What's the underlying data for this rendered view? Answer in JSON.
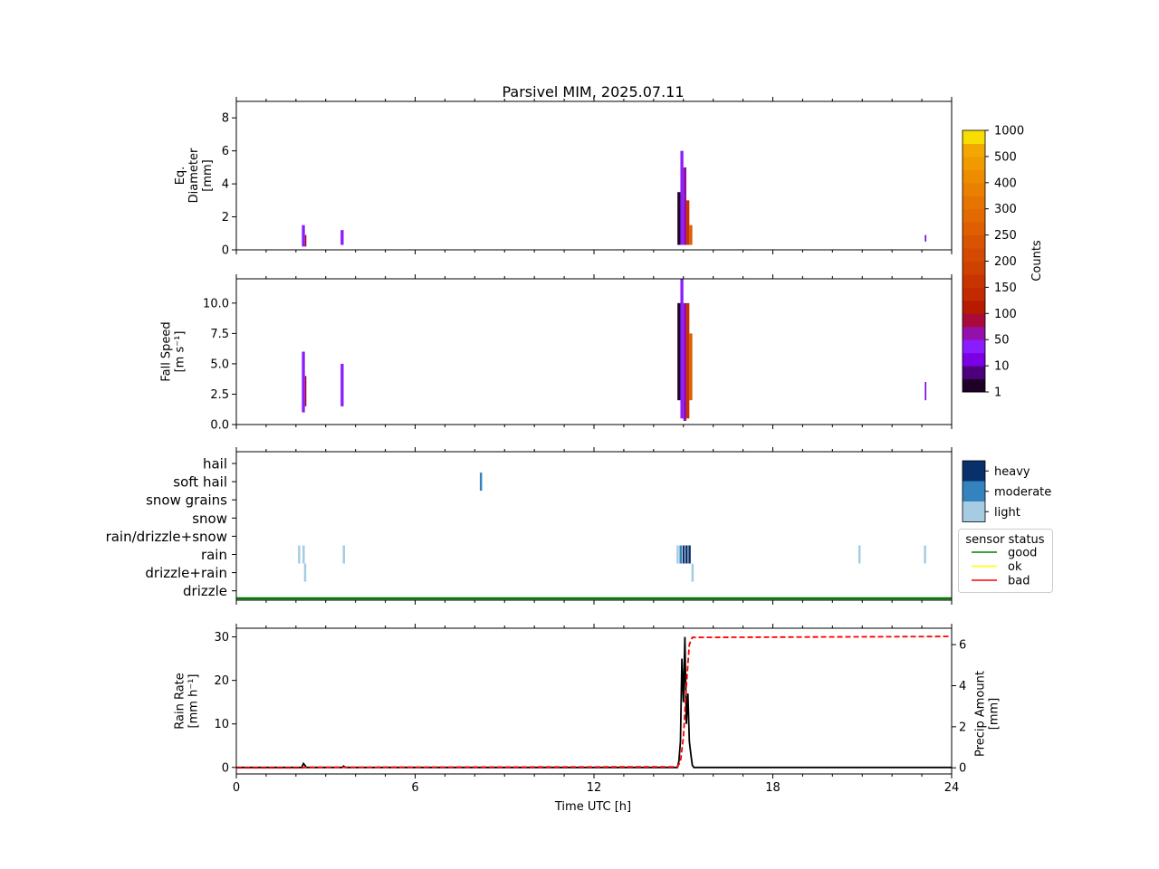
{
  "chart_data": {
    "title": "Parsivel MIM, 2025.07.11",
    "xlabel": "Time UTC [h]",
    "x_ticks": [
      "0",
      "6",
      "12",
      "18",
      "24"
    ],
    "xlim": [
      0,
      24
    ],
    "panels": [
      {
        "type": "heatmap",
        "ylabel": [
          "Eq.",
          "Diameter",
          "[mm]"
        ],
        "ylim": [
          0,
          9
        ],
        "y_ticks": [
          "0",
          "2",
          "4",
          "6",
          "8"
        ],
        "y_tick_values": [
          0,
          2,
          4,
          6,
          8
        ],
        "cells": [
          {
            "t0": 2.2,
            "t1": 2.3,
            "y0": 0.2,
            "y1": 1.5,
            "level": 30
          },
          {
            "t0": 2.3,
            "t1": 2.35,
            "y0": 0.2,
            "y1": 0.9,
            "level": 80
          },
          {
            "t0": 3.5,
            "t1": 3.6,
            "y0": 0.3,
            "y1": 1.2,
            "level": 20
          },
          {
            "t0": 14.8,
            "t1": 14.9,
            "y0": 0.3,
            "y1": 3.5,
            "level": 2
          },
          {
            "t0": 14.9,
            "t1": 15.0,
            "y0": 0.3,
            "y1": 6.0,
            "level": 30
          },
          {
            "t0": 15.0,
            "t1": 15.1,
            "y0": 0.3,
            "y1": 5.0,
            "level": 60
          },
          {
            "t0": 15.1,
            "t1": 15.2,
            "y0": 0.3,
            "y1": 3.0,
            "level": 150
          },
          {
            "t0": 15.2,
            "t1": 15.3,
            "y0": 0.3,
            "y1": 1.5,
            "level": 250
          },
          {
            "t0": 23.1,
            "t1": 23.15,
            "y0": 0.5,
            "y1": 0.9,
            "level": 15
          }
        ]
      },
      {
        "type": "heatmap",
        "ylabel": [
          "Fall Speed",
          "[m s⁻¹]"
        ],
        "ylim": [
          0,
          12
        ],
        "y_ticks": [
          "0.0",
          "2.5",
          "5.0",
          "7.5",
          "10.0"
        ],
        "y_tick_values": [
          0,
          2.5,
          5,
          7.5,
          10
        ],
        "cells": [
          {
            "t0": 2.2,
            "t1": 2.3,
            "y0": 1.0,
            "y1": 6.0,
            "level": 30
          },
          {
            "t0": 2.3,
            "t1": 2.35,
            "y0": 1.5,
            "y1": 4.0,
            "level": 80
          },
          {
            "t0": 3.5,
            "t1": 3.6,
            "y0": 1.5,
            "y1": 5.0,
            "level": 20
          },
          {
            "t0": 14.8,
            "t1": 14.9,
            "y0": 2.0,
            "y1": 10.0,
            "level": 2
          },
          {
            "t0": 14.9,
            "t1": 15.0,
            "y0": 0.5,
            "y1": 12.0,
            "level": 30
          },
          {
            "t0": 15.0,
            "t1": 15.1,
            "y0": 0.3,
            "y1": 10.0,
            "level": 60
          },
          {
            "t0": 15.1,
            "t1": 15.2,
            "y0": 0.5,
            "y1": 10.0,
            "level": 150
          },
          {
            "t0": 15.2,
            "t1": 15.3,
            "y0": 2.0,
            "y1": 7.5,
            "level": 250
          },
          {
            "t0": 23.1,
            "t1": 23.15,
            "y0": 2.0,
            "y1": 3.5,
            "level": 15
          }
        ]
      },
      {
        "type": "categorical-timeline",
        "categories": [
          "hail",
          "soft hail",
          "snow grains",
          "snow",
          "rain/drizzle+snow",
          "rain",
          "drizzle+rain",
          "drizzle"
        ],
        "events": [
          {
            "t": 2.1,
            "category": "rain",
            "intensity": "light"
          },
          {
            "t": 2.25,
            "category": "rain",
            "intensity": "light"
          },
          {
            "t": 2.3,
            "category": "drizzle+rain",
            "intensity": "light"
          },
          {
            "t": 3.6,
            "category": "rain",
            "intensity": "light"
          },
          {
            "t": 8.2,
            "category": "soft hail",
            "intensity": "moderate"
          },
          {
            "t": 14.8,
            "category": "rain",
            "intensity": "light"
          },
          {
            "t": 14.9,
            "category": "rain",
            "intensity": "moderate"
          },
          {
            "t": 15.0,
            "category": "rain",
            "intensity": "heavy"
          },
          {
            "t": 15.1,
            "category": "rain",
            "intensity": "heavy"
          },
          {
            "t": 15.2,
            "category": "rain",
            "intensity": "heavy"
          },
          {
            "t": 15.3,
            "category": "drizzle+rain",
            "intensity": "light"
          },
          {
            "t": 20.9,
            "category": "rain",
            "intensity": "light"
          },
          {
            "t": 23.1,
            "category": "rain",
            "intensity": "light"
          }
        ],
        "intensity_legend": [
          "heavy",
          "moderate",
          "light"
        ],
        "sensor_status": {
          "title": "sensor status",
          "entries": [
            "good",
            "ok",
            "bad"
          ],
          "current": "good"
        }
      },
      {
        "type": "line",
        "ylabel": [
          "Rain Rate",
          "[mm h⁻¹]"
        ],
        "ylim": [
          -1.5,
          32
        ],
        "y_ticks": [
          "0",
          "10",
          "20",
          "30"
        ],
        "y_tick_values": [
          0,
          10,
          20,
          30
        ],
        "ylabel2": [
          "Precip Amount",
          "[mm]"
        ],
        "ylim2": [
          -0.3,
          6.8
        ],
        "y2_ticks": [
          "0",
          "2",
          "4",
          "6"
        ],
        "y2_tick_values": [
          0,
          2,
          4,
          6
        ],
        "series": [
          {
            "name": "rain rate",
            "axis": "left",
            "x": [
              0,
              2.2,
              2.25,
              2.3,
              2.35,
              3.55,
              3.6,
              3.65,
              14.8,
              14.85,
              14.9,
              14.95,
              15.0,
              15.05,
              15.1,
              15.15,
              15.2,
              15.25,
              15.3,
              15.35,
              24
            ],
            "y": [
              0,
              0,
              0.9,
              0.5,
              0,
              0,
              0.3,
              0,
              0,
              1.5,
              6,
              25,
              15,
              30,
              10,
              17,
              6,
              3,
              0.5,
              0,
              0
            ]
          },
          {
            "name": "precip amount",
            "axis": "right",
            "x": [
              0,
              2.2,
              2.4,
              14.8,
              14.9,
              15.0,
              15.1,
              15.2,
              15.3,
              24
            ],
            "y": [
              0,
              0,
              0.02,
              0.05,
              0.3,
              1.5,
              4.0,
              6.0,
              6.35,
              6.4
            ]
          }
        ]
      }
    ],
    "colorbar": {
      "label": "Counts",
      "tick_labels": [
        "1",
        "10",
        "50",
        "100",
        "150",
        "200",
        "250",
        "300",
        "400",
        "500",
        "1000"
      ],
      "bounds": [
        1,
        5,
        10,
        20,
        50,
        75,
        100,
        125,
        150,
        175,
        200,
        225,
        250,
        275,
        300,
        350,
        400,
        450,
        500,
        750,
        1000
      ],
      "colors": [
        "#1f0026",
        "#4c0079",
        "#7b00e6",
        "#8a1cff",
        "#9410aa",
        "#a80a3a",
        "#b81a00",
        "#c22a00",
        "#c83400",
        "#ce4200",
        "#d44a00",
        "#d85400",
        "#de5e00",
        "#e26a00",
        "#e67400",
        "#ea8000",
        "#ee8c00",
        "#f09a00",
        "#f2a800",
        "#f8dd00"
      ]
    }
  }
}
